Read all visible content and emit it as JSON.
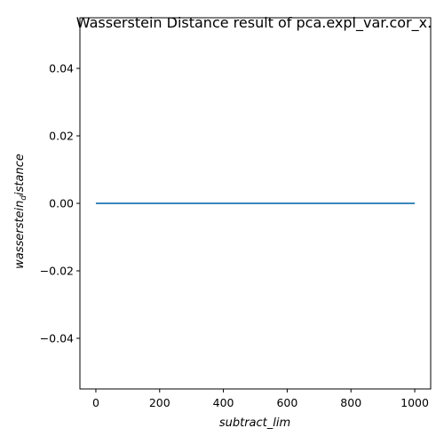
{
  "chart_data": {
    "type": "line",
    "title": "Wasserstein Distance result of pca.expl_var.cor_x.",
    "xlabel": "subtract_lim",
    "ylabel_main": "wasserstein",
    "ylabel_sub": "d",
    "ylabel_tail": "istance",
    "xlim": [
      -50,
      1050
    ],
    "ylim": [
      -0.055,
      0.055
    ],
    "xticks": [
      0,
      200,
      400,
      600,
      800,
      1000
    ],
    "xtick_labels": [
      "0",
      "200",
      "400",
      "600",
      "800",
      "1000"
    ],
    "yticks": [
      -0.04,
      -0.02,
      0.0,
      0.02,
      0.04
    ],
    "ytick_labels": [
      "−0.04",
      "−0.02",
      "0.00",
      "0.02",
      "0.04"
    ],
    "grid": false,
    "series": [
      {
        "color": "#1f77b4",
        "x": [
          0,
          1000
        ],
        "y": [
          0,
          0
        ]
      }
    ]
  }
}
